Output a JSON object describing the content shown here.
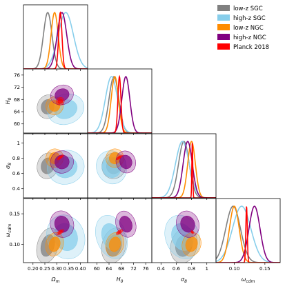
{
  "chart_data": {
    "type": "corner",
    "parameters": [
      {
        "key": "om",
        "label": "Ω_m",
        "ticks": [
          "0.20",
          "0.25",
          "0.30",
          "0.35",
          "0.40"
        ],
        "range": [
          0.16,
          0.43
        ]
      },
      {
        "key": "h0",
        "label": "H_0",
        "ticks": [
          "60",
          "64",
          "68",
          "72",
          "76"
        ],
        "range": [
          57,
          78
        ]
      },
      {
        "key": "s8",
        "label": "σ_8",
        "ticks": [
          "0.4",
          "0.6",
          "0.8",
          "1"
        ],
        "range": [
          0.28,
          1.12
        ]
      },
      {
        "key": "wc",
        "label": "ω_cdm",
        "ticks": [
          "0.10",
          "0.15"
        ],
        "range": [
          0.07,
          0.175
        ]
      }
    ],
    "y_axis_labels": {
      "h0": {
        "label": "H_0",
        "ticks": [
          "60",
          "64",
          "68",
          "72",
          "76"
        ]
      },
      "s8": {
        "label": "σ_8",
        "ticks": [
          "0.4",
          "0.6",
          "0.8",
          "1"
        ]
      },
      "wc": {
        "label": "ω_cdm",
        "ticks": [
          "0.10",
          "0.15"
        ]
      }
    },
    "series": [
      {
        "name": "low-z SGC",
        "color": "#808080",
        "means": {
          "om": 0.262,
          "h0": 65.6,
          "s8": 0.7,
          "wc": 0.098
        },
        "sigmas": {
          "om": 0.018,
          "h0": 1.6,
          "s8": 0.07,
          "wc": 0.012
        }
      },
      {
        "name": "high-z SGC",
        "color": "#87ceeb",
        "means": {
          "om": 0.338,
          "h0": 64.8,
          "s8": 0.68,
          "wc": 0.112
        },
        "sigmas": {
          "om": 0.032,
          "h0": 2.0,
          "s8": 0.09,
          "wc": 0.015
        }
      },
      {
        "name": "low-z NGC",
        "color": "#ff8c00",
        "means": {
          "om": 0.291,
          "h0": 65.9,
          "s8": 0.8,
          "wc": 0.1
        },
        "sigmas": {
          "om": 0.015,
          "h0": 1.2,
          "s8": 0.05,
          "wc": 0.008
        }
      },
      {
        "name": "high-z NGC",
        "color": "#800080",
        "means": {
          "om": 0.322,
          "h0": 69.5,
          "s8": 0.75,
          "wc": 0.133
        },
        "sigmas": {
          "om": 0.02,
          "h0": 1.3,
          "s8": 0.06,
          "wc": 0.009
        }
      },
      {
        "name": "Planck 2018",
        "color": "#ff0000",
        "means": {
          "om": 0.315,
          "h0": 67.4,
          "s8": 0.81,
          "wc": 0.12
        },
        "sigmas": {
          "om": 0.007,
          "h0": 0.5,
          "s8": 0.006,
          "wc": 0.0012
        }
      }
    ]
  }
}
